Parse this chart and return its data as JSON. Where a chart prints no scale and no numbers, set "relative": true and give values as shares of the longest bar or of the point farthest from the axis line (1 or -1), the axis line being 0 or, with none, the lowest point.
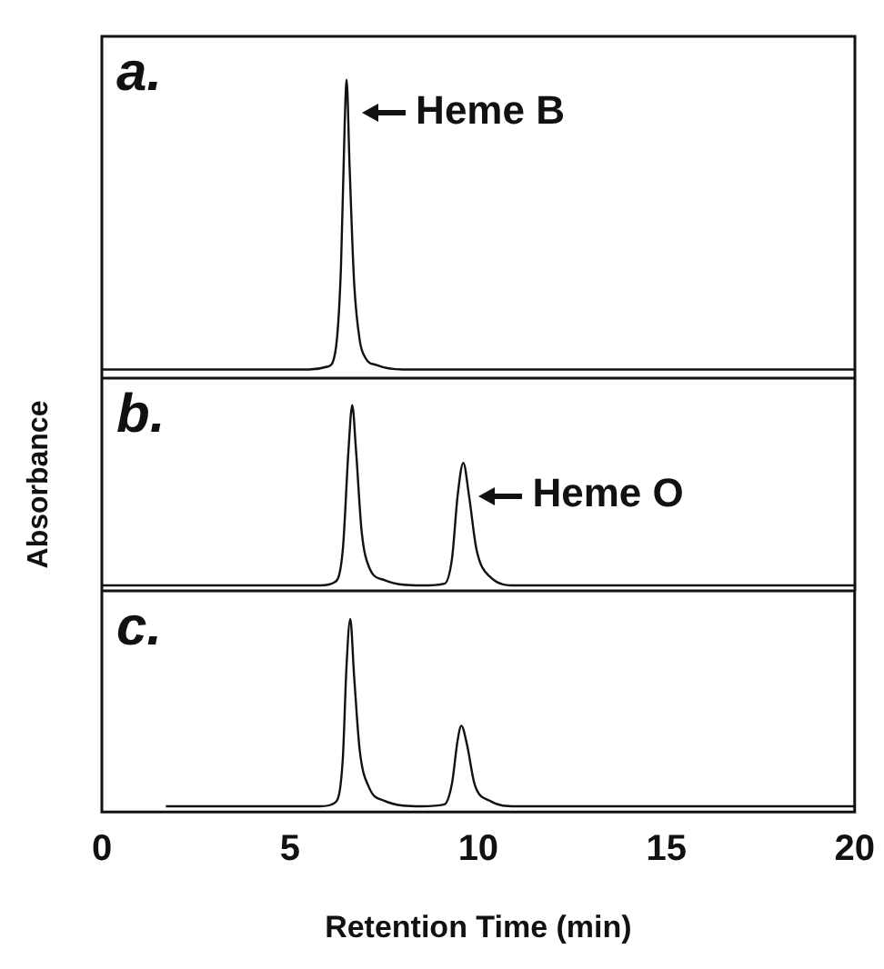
{
  "chart_data": [
    {
      "type": "line",
      "title": "a.",
      "relative": true,
      "color": "#111111",
      "xlim": [
        0,
        20
      ],
      "tick_labels": false,
      "x": [
        0,
        5.5,
        6.0,
        6.2,
        6.35,
        6.45,
        6.5,
        6.58,
        6.7,
        6.85,
        7.0,
        7.3,
        8.0,
        20
      ],
      "values": [
        0,
        0,
        0.01,
        0.06,
        0.35,
        0.85,
        1,
        0.7,
        0.3,
        0.1,
        0.04,
        0.015,
        0,
        0
      ],
      "annotations": [
        {
          "text": "Heme B",
          "x": 6.5,
          "y": 1
        }
      ]
    },
    {
      "type": "line",
      "title": "b.",
      "ylabel": "Absorbance",
      "relative": true,
      "color": "#111111",
      "xlim": [
        0,
        20
      ],
      "tick_labels": false,
      "x": [
        0,
        5.8,
        6.2,
        6.4,
        6.55,
        6.65,
        6.75,
        6.9,
        7.1,
        7.5,
        8.5,
        9.1,
        9.3,
        9.45,
        9.6,
        9.75,
        9.95,
        10.3,
        11,
        20
      ],
      "values": [
        0,
        0,
        0.02,
        0.2,
        0.75,
        1,
        0.75,
        0.3,
        0.1,
        0.03,
        0,
        0.01,
        0.15,
        0.5,
        0.68,
        0.5,
        0.2,
        0.05,
        0,
        0
      ],
      "annotations": [
        {
          "text": "Heme O",
          "x": 9.6,
          "y": 0.68
        }
      ]
    },
    {
      "type": "line",
      "title": "c.",
      "xlabel": "Retention Time (min)",
      "relative": true,
      "color": "#111111",
      "xlim": [
        0,
        20
      ],
      "xticks": [
        0,
        5,
        10,
        15,
        20
      ],
      "tick_labels": "x",
      "x": [
        1.7,
        5.8,
        6.2,
        6.4,
        6.5,
        6.6,
        6.7,
        6.85,
        7.1,
        7.5,
        8.5,
        9.1,
        9.3,
        9.45,
        9.55,
        9.7,
        9.9,
        10.3,
        11,
        20
      ],
      "values": [
        0,
        0,
        0.02,
        0.25,
        0.75,
        1,
        0.7,
        0.3,
        0.1,
        0.03,
        0,
        0.01,
        0.12,
        0.35,
        0.43,
        0.33,
        0.12,
        0.03,
        0,
        0
      ]
    }
  ]
}
